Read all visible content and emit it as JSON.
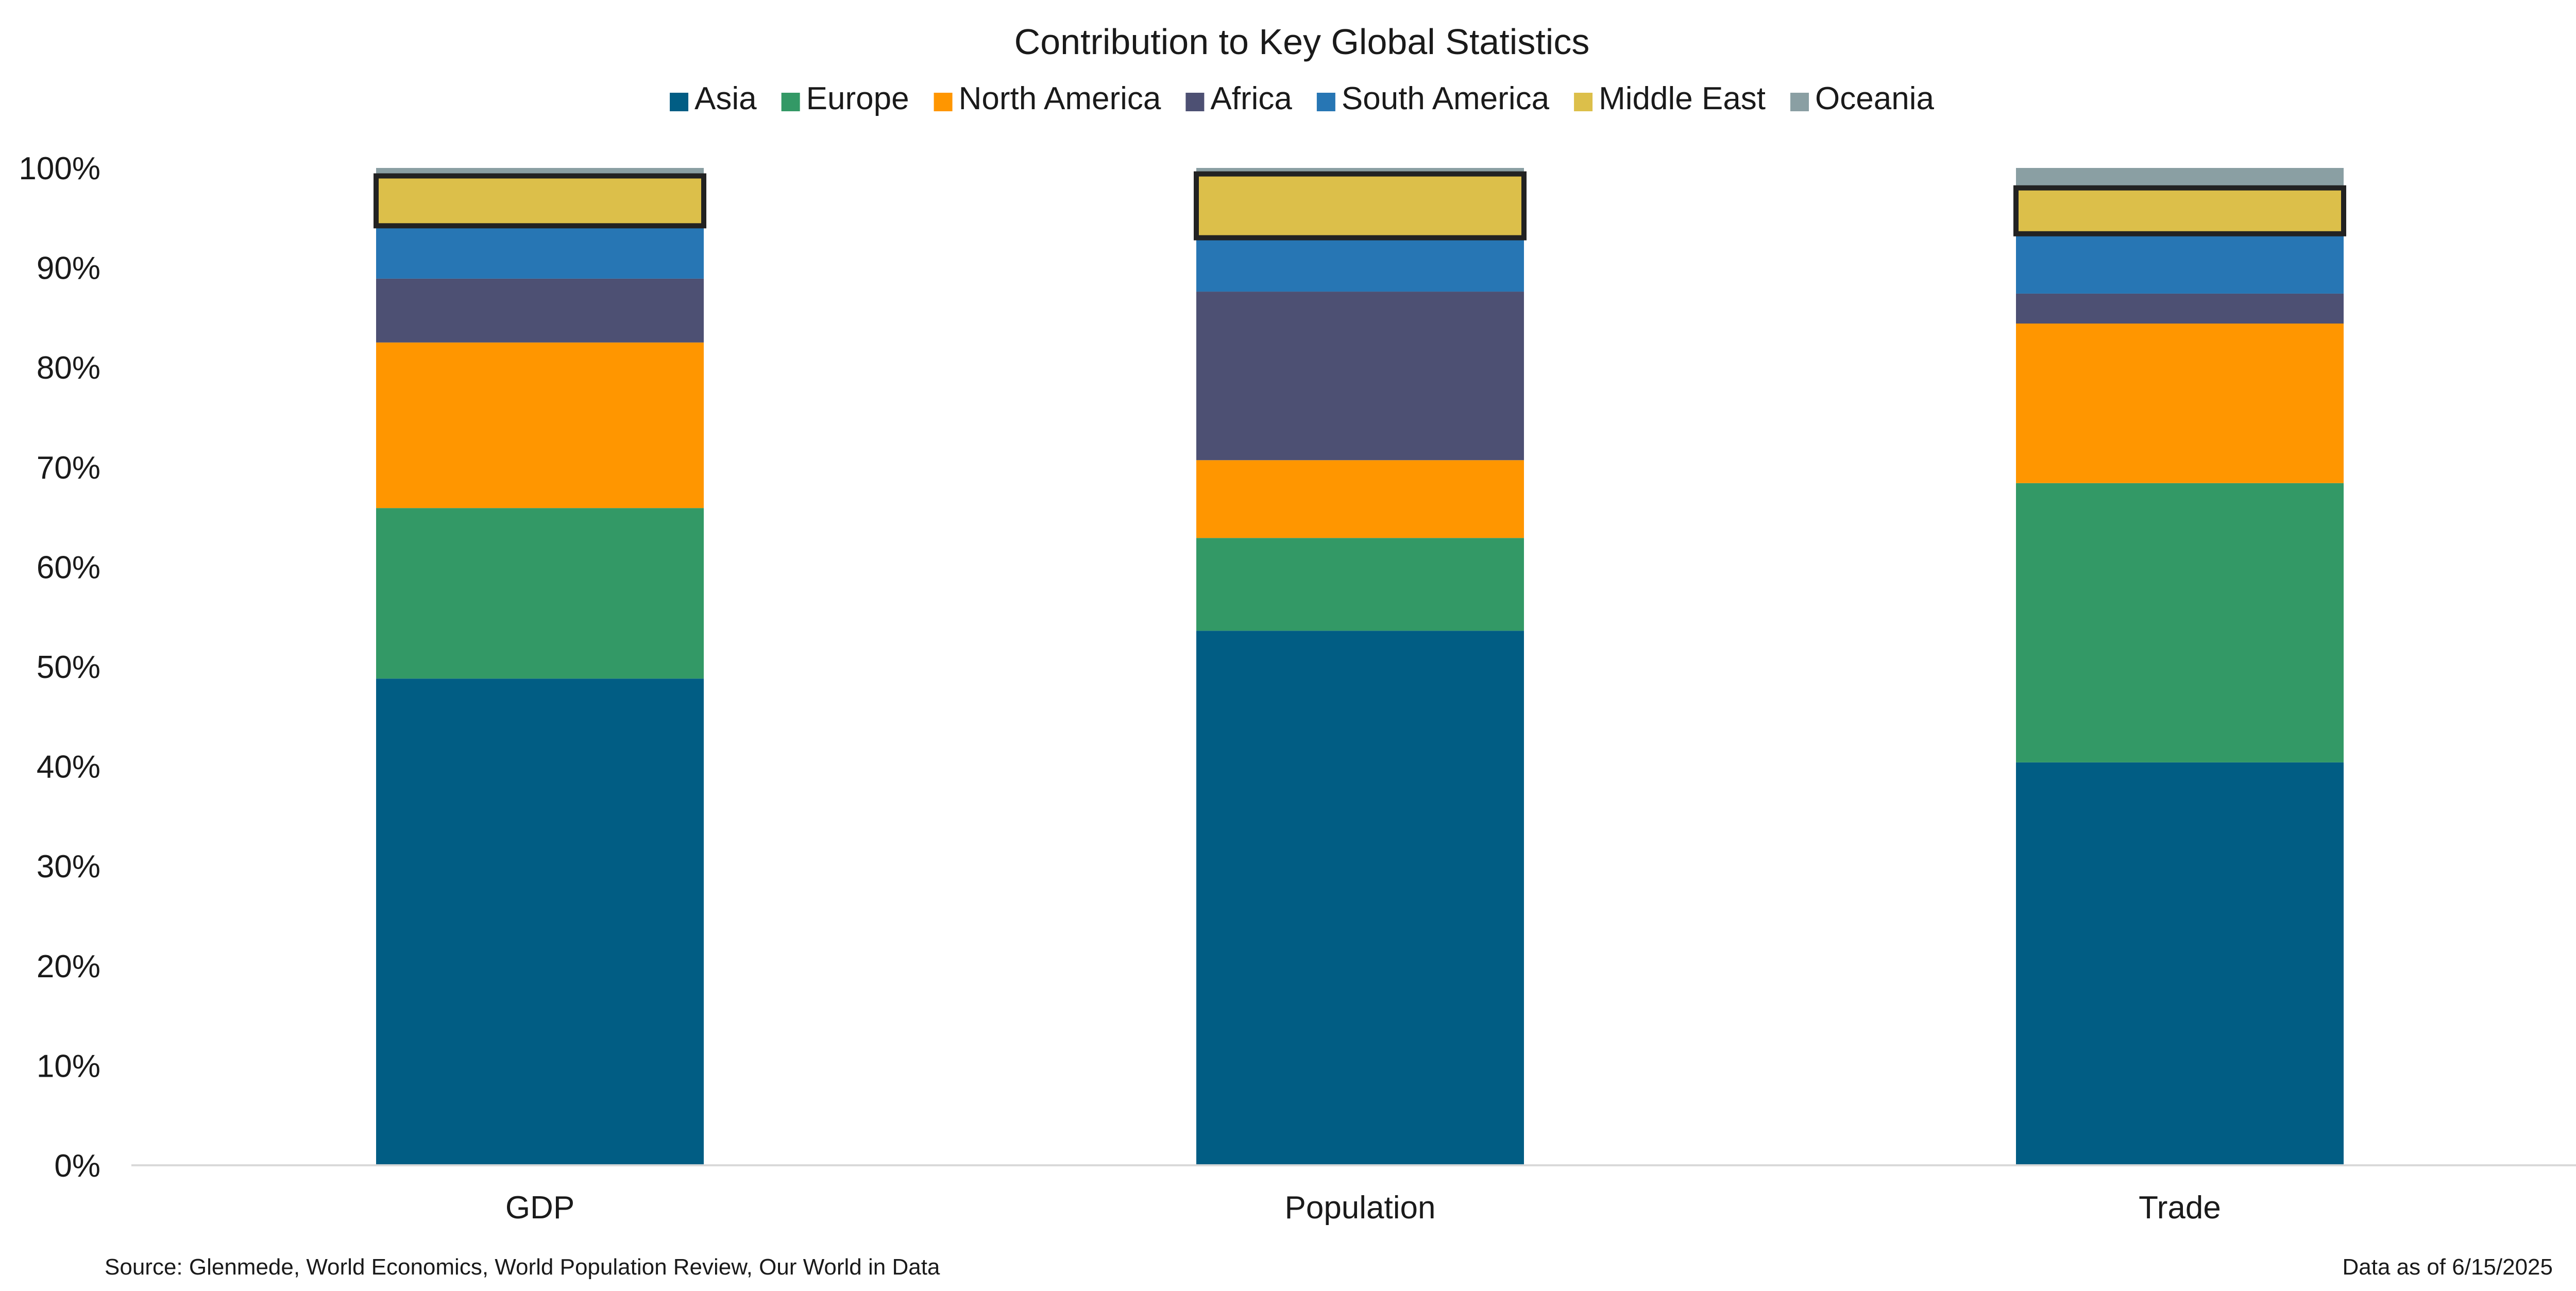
{
  "chart_data": {
    "type": "bar",
    "stacked": true,
    "title": "Contribution to Key Global Statistics",
    "categories": [
      "GDP",
      "Population",
      "Trade"
    ],
    "series": [
      {
        "name": "Asia",
        "color": "#015D84",
        "values": [
          48.8,
          53.6,
          40.4
        ]
      },
      {
        "name": "Europe",
        "color": "#339966",
        "values": [
          17.1,
          9.3,
          28.0
        ]
      },
      {
        "name": "North America",
        "color": "#FF9600",
        "values": [
          16.6,
          7.8,
          16.0
        ]
      },
      {
        "name": "Africa",
        "color": "#4D5073",
        "values": [
          6.4,
          16.9,
          3.0
        ]
      },
      {
        "name": "South America",
        "color": "#2776B4",
        "values": [
          5.3,
          5.4,
          6.0
        ]
      },
      {
        "name": "Middle East",
        "color": "#DCBF4A",
        "values": [
          5.0,
          6.4,
          4.6
        ]
      },
      {
        "name": "Oceania",
        "color": "#8A9FA3",
        "values": [
          0.8,
          0.6,
          2.0
        ]
      }
    ],
    "highlighted_series": "Middle East",
    "ylim": [
      0,
      100
    ],
    "yticks": [
      0,
      10,
      20,
      30,
      40,
      50,
      60,
      70,
      80,
      90,
      100
    ],
    "ytick_labels": [
      "0%",
      "10%",
      "20%",
      "30%",
      "40%",
      "50%",
      "60%",
      "70%",
      "80%",
      "90%",
      "100%"
    ],
    "xlabel": "",
    "ylabel": "",
    "legend_position": "top-center",
    "grid": false
  },
  "footer": {
    "source": "Source: Glenmede, World Economics, World Population Review, Our World in Data",
    "date_note": "Data as of 6/15/2025"
  }
}
